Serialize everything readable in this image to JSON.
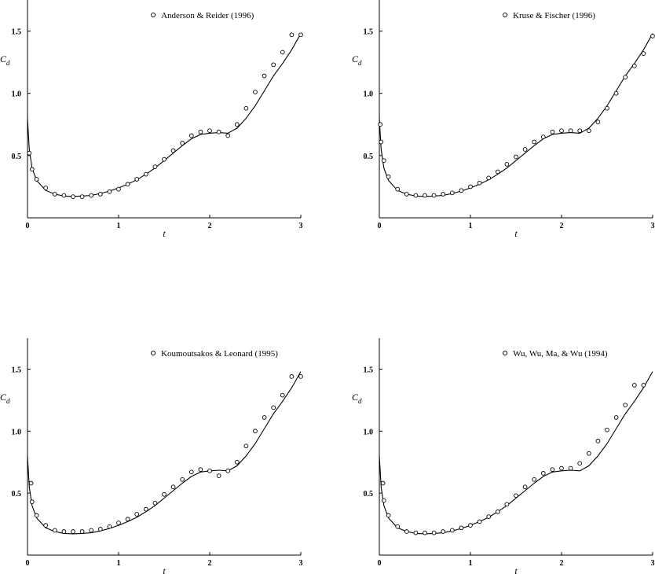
{
  "chart_data": [
    {
      "type": "line",
      "xlabel": "t",
      "ylabel": "C_d",
      "xlim": [
        0,
        3
      ],
      "ylim": [
        0,
        1.75
      ],
      "xticks": [
        "0",
        "1",
        "2",
        "3"
      ],
      "yticks": [
        "0.5",
        "1.0",
        "1.5"
      ],
      "grid": false,
      "legend_position": "top-right",
      "series": [
        {
          "style": "line",
          "x": [
            0,
            0.02,
            0.05,
            0.1,
            0.2,
            0.3,
            0.4,
            0.5,
            0.6,
            0.7,
            0.8,
            0.9,
            1.0,
            1.1,
            1.2,
            1.3,
            1.4,
            1.5,
            1.6,
            1.7,
            1.8,
            1.9,
            2.0,
            2.1,
            2.2,
            2.25,
            2.3,
            2.4,
            2.5,
            2.6,
            2.7,
            2.8,
            2.9,
            3.0
          ],
          "y": [
            0.8,
            0.55,
            0.4,
            0.3,
            0.22,
            0.19,
            0.175,
            0.172,
            0.175,
            0.18,
            0.195,
            0.215,
            0.24,
            0.27,
            0.305,
            0.35,
            0.4,
            0.46,
            0.52,
            0.58,
            0.635,
            0.67,
            0.68,
            0.685,
            0.68,
            0.7,
            0.72,
            0.8,
            0.9,
            1.02,
            1.14,
            1.24,
            1.35,
            1.48
          ]
        },
        {
          "name": "Anderson & Reider (1996)",
          "style": "marker",
          "x": [
            0.02,
            0.05,
            0.1,
            0.2,
            0.3,
            0.4,
            0.5,
            0.6,
            0.7,
            0.8,
            0.9,
            1.0,
            1.1,
            1.2,
            1.3,
            1.4,
            1.5,
            1.6,
            1.7,
            1.8,
            1.9,
            2.0,
            2.1,
            2.2,
            2.3,
            2.4,
            2.5,
            2.6,
            2.7,
            2.8,
            2.9,
            3.0
          ],
          "y": [
            0.52,
            0.39,
            0.31,
            0.24,
            0.19,
            0.18,
            0.17,
            0.17,
            0.18,
            0.19,
            0.21,
            0.23,
            0.27,
            0.31,
            0.35,
            0.41,
            0.47,
            0.54,
            0.6,
            0.66,
            0.69,
            0.7,
            0.69,
            0.66,
            0.75,
            0.88,
            1.01,
            1.14,
            1.23,
            1.33,
            1.47,
            1.47
          ]
        }
      ]
    },
    {
      "type": "line",
      "xlabel": "t",
      "ylabel": "C_d",
      "xlim": [
        0,
        3
      ],
      "ylim": [
        0,
        1.75
      ],
      "xticks": [
        "0",
        "1",
        "2",
        "3"
      ],
      "yticks": [
        "0.5",
        "1.0",
        "1.5"
      ],
      "grid": false,
      "legend_position": "top-right",
      "series": [
        {
          "style": "line",
          "x": [
            0,
            0.02,
            0.05,
            0.1,
            0.2,
            0.3,
            0.4,
            0.5,
            0.6,
            0.7,
            0.8,
            0.9,
            1.0,
            1.1,
            1.2,
            1.3,
            1.4,
            1.5,
            1.6,
            1.7,
            1.8,
            1.9,
            2.0,
            2.1,
            2.2,
            2.25,
            2.3,
            2.4,
            2.5,
            2.6,
            2.7,
            2.8,
            2.9,
            3.0
          ],
          "y": [
            0.8,
            0.55,
            0.4,
            0.3,
            0.22,
            0.19,
            0.175,
            0.172,
            0.175,
            0.18,
            0.195,
            0.215,
            0.24,
            0.27,
            0.305,
            0.35,
            0.4,
            0.46,
            0.52,
            0.58,
            0.635,
            0.67,
            0.68,
            0.685,
            0.68,
            0.7,
            0.72,
            0.8,
            0.9,
            1.02,
            1.14,
            1.24,
            1.35,
            1.48
          ]
        },
        {
          "name": "Kruse & Fischer (1996)",
          "style": "marker",
          "x": [
            0.01,
            0.02,
            0.05,
            0.1,
            0.2,
            0.3,
            0.4,
            0.5,
            0.6,
            0.7,
            0.8,
            0.9,
            1.0,
            1.1,
            1.2,
            1.3,
            1.4,
            1.5,
            1.6,
            1.7,
            1.8,
            1.9,
            2.0,
            2.1,
            2.2,
            2.3,
            2.4,
            2.5,
            2.6,
            2.7,
            2.8,
            2.9,
            3.0
          ],
          "y": [
            0.75,
            0.61,
            0.46,
            0.33,
            0.23,
            0.19,
            0.18,
            0.18,
            0.18,
            0.19,
            0.2,
            0.22,
            0.25,
            0.28,
            0.32,
            0.37,
            0.43,
            0.49,
            0.55,
            0.61,
            0.65,
            0.69,
            0.7,
            0.7,
            0.7,
            0.7,
            0.77,
            0.88,
            1.0,
            1.13,
            1.22,
            1.32,
            1.46
          ]
        }
      ]
    },
    {
      "type": "line",
      "xlabel": "t",
      "ylabel": "C_d",
      "xlim": [
        0,
        3
      ],
      "ylim": [
        0,
        1.75
      ],
      "xticks": [
        "0",
        "1",
        "2",
        "3"
      ],
      "yticks": [
        "0.5",
        "1.0",
        "1.5"
      ],
      "grid": false,
      "legend_position": "top-right",
      "series": [
        {
          "style": "line",
          "x": [
            0,
            0.02,
            0.05,
            0.1,
            0.2,
            0.3,
            0.4,
            0.5,
            0.6,
            0.7,
            0.8,
            0.9,
            1.0,
            1.1,
            1.2,
            1.3,
            1.4,
            1.5,
            1.6,
            1.7,
            1.8,
            1.9,
            2.0,
            2.1,
            2.2,
            2.25,
            2.3,
            2.4,
            2.5,
            2.6,
            2.7,
            2.8,
            2.9,
            3.0
          ],
          "y": [
            0.8,
            0.55,
            0.4,
            0.3,
            0.22,
            0.19,
            0.175,
            0.172,
            0.175,
            0.18,
            0.195,
            0.215,
            0.24,
            0.27,
            0.305,
            0.35,
            0.4,
            0.46,
            0.52,
            0.58,
            0.635,
            0.67,
            0.68,
            0.685,
            0.68,
            0.7,
            0.72,
            0.8,
            0.9,
            1.02,
            1.14,
            1.24,
            1.35,
            1.48
          ]
        },
        {
          "name": "Koumoutsakos & Leonard (1995)",
          "style": "marker",
          "x": [
            0.04,
            0.05,
            0.1,
            0.2,
            0.3,
            0.4,
            0.5,
            0.6,
            0.7,
            0.8,
            0.9,
            1.0,
            1.1,
            1.2,
            1.3,
            1.4,
            1.5,
            1.6,
            1.7,
            1.8,
            1.9,
            2.0,
            2.1,
            2.2,
            2.3,
            2.4,
            2.5,
            2.6,
            2.7,
            2.8,
            2.9,
            3.0
          ],
          "y": [
            0.58,
            0.43,
            0.32,
            0.24,
            0.2,
            0.19,
            0.19,
            0.19,
            0.2,
            0.21,
            0.23,
            0.26,
            0.29,
            0.33,
            0.37,
            0.42,
            0.49,
            0.55,
            0.61,
            0.67,
            0.69,
            0.68,
            0.64,
            0.68,
            0.75,
            0.88,
            1.0,
            1.11,
            1.19,
            1.29,
            1.44,
            1.44
          ]
        }
      ]
    },
    {
      "type": "line",
      "xlabel": "t",
      "ylabel": "C_d",
      "xlim": [
        0,
        3
      ],
      "ylim": [
        0,
        1.75
      ],
      "xticks": [
        "0",
        "1",
        "2",
        "3"
      ],
      "yticks": [
        "0.5",
        "1.0",
        "1.5"
      ],
      "grid": false,
      "legend_position": "top-right",
      "series": [
        {
          "style": "line",
          "x": [
            0,
            0.02,
            0.05,
            0.1,
            0.2,
            0.3,
            0.4,
            0.5,
            0.6,
            0.7,
            0.8,
            0.9,
            1.0,
            1.1,
            1.2,
            1.3,
            1.4,
            1.5,
            1.6,
            1.7,
            1.8,
            1.9,
            2.0,
            2.1,
            2.2,
            2.25,
            2.3,
            2.4,
            2.5,
            2.6,
            2.7,
            2.8,
            2.9,
            3.0
          ],
          "y": [
            0.8,
            0.55,
            0.4,
            0.3,
            0.22,
            0.19,
            0.175,
            0.172,
            0.175,
            0.18,
            0.195,
            0.215,
            0.24,
            0.27,
            0.305,
            0.35,
            0.4,
            0.46,
            0.52,
            0.58,
            0.635,
            0.67,
            0.68,
            0.685,
            0.68,
            0.7,
            0.72,
            0.8,
            0.9,
            1.02,
            1.14,
            1.24,
            1.35,
            1.48
          ]
        },
        {
          "name": "Wu, Wu, Ma, & Wu (1994)",
          "style": "marker",
          "x": [
            0.04,
            0.05,
            0.1,
            0.2,
            0.3,
            0.4,
            0.5,
            0.6,
            0.7,
            0.8,
            0.9,
            1.0,
            1.1,
            1.2,
            1.3,
            1.4,
            1.5,
            1.6,
            1.7,
            1.8,
            1.9,
            2.0,
            2.1,
            2.2,
            2.3,
            2.4,
            2.5,
            2.6,
            2.7,
            2.8,
            2.9
          ],
          "y": [
            0.58,
            0.44,
            0.32,
            0.23,
            0.19,
            0.18,
            0.18,
            0.18,
            0.19,
            0.2,
            0.22,
            0.24,
            0.27,
            0.31,
            0.35,
            0.41,
            0.48,
            0.55,
            0.61,
            0.66,
            0.69,
            0.7,
            0.7,
            0.74,
            0.82,
            0.92,
            1.01,
            1.11,
            1.21,
            1.37,
            1.37
          ]
        }
      ]
    }
  ]
}
